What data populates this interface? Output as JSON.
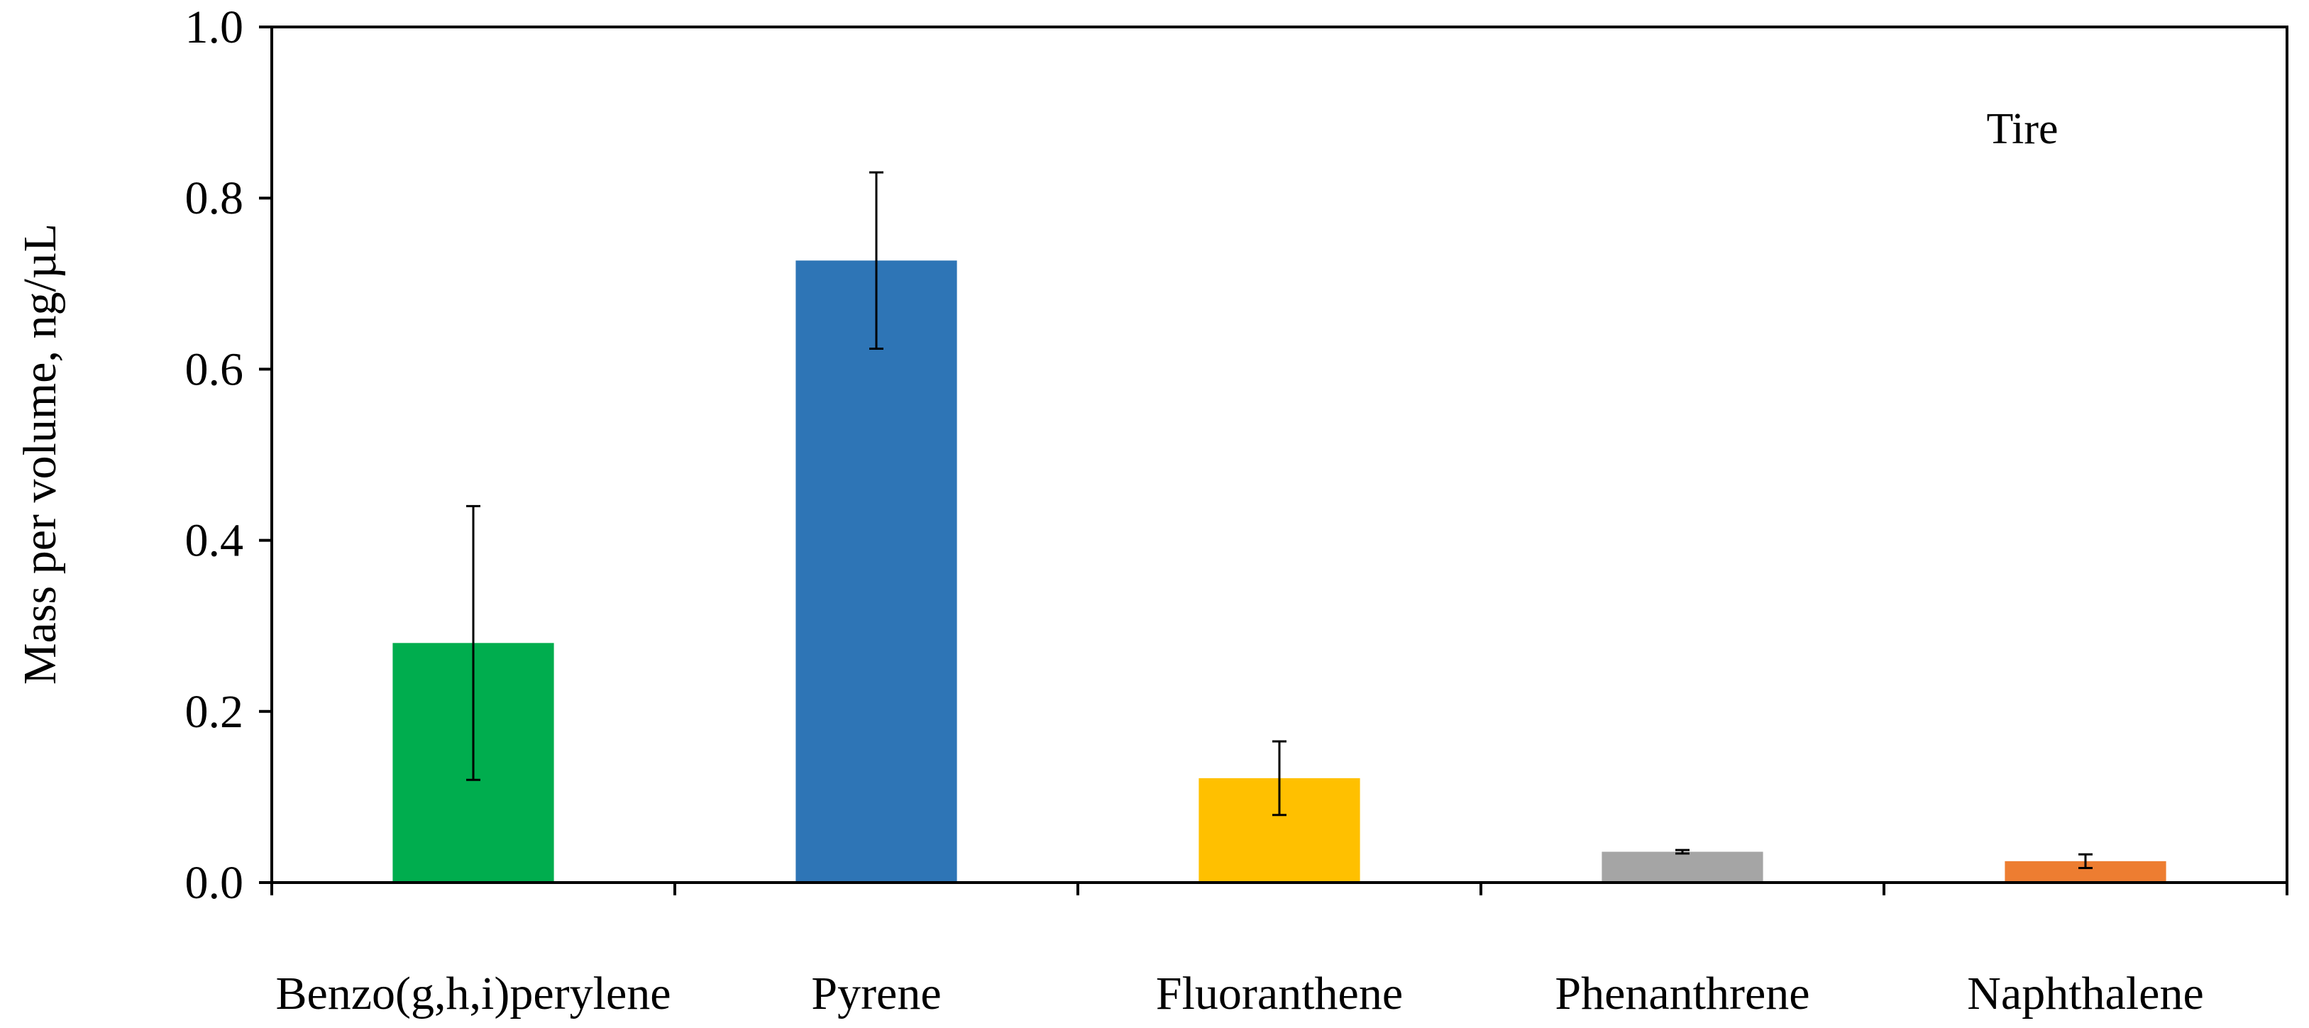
{
  "chart_data": {
    "type": "bar",
    "categories": [
      "Benzo(g,h,i)perylene",
      "Pyrene",
      "Fluoranthene",
      "Phenanthrene",
      "Naphthalene"
    ],
    "values": [
      0.28,
      0.727,
      0.122,
      0.036,
      0.025
    ],
    "errors": [
      0.16,
      0.103,
      0.043,
      0.002,
      0.008
    ],
    "colors": [
      "#00ad4e",
      "#2e75b6",
      "#ffc000",
      "#a5a5a5",
      "#ed7d31"
    ],
    "ylabel": "Mass per volume, ng/µL",
    "xlabel": "",
    "ylim": [
      0.0,
      1.0
    ],
    "yticks": [
      "0.0",
      "0.2",
      "0.4",
      "0.6",
      "0.8",
      "1.0"
    ],
    "annotation": "Tire",
    "grid": false,
    "legend": "none"
  }
}
